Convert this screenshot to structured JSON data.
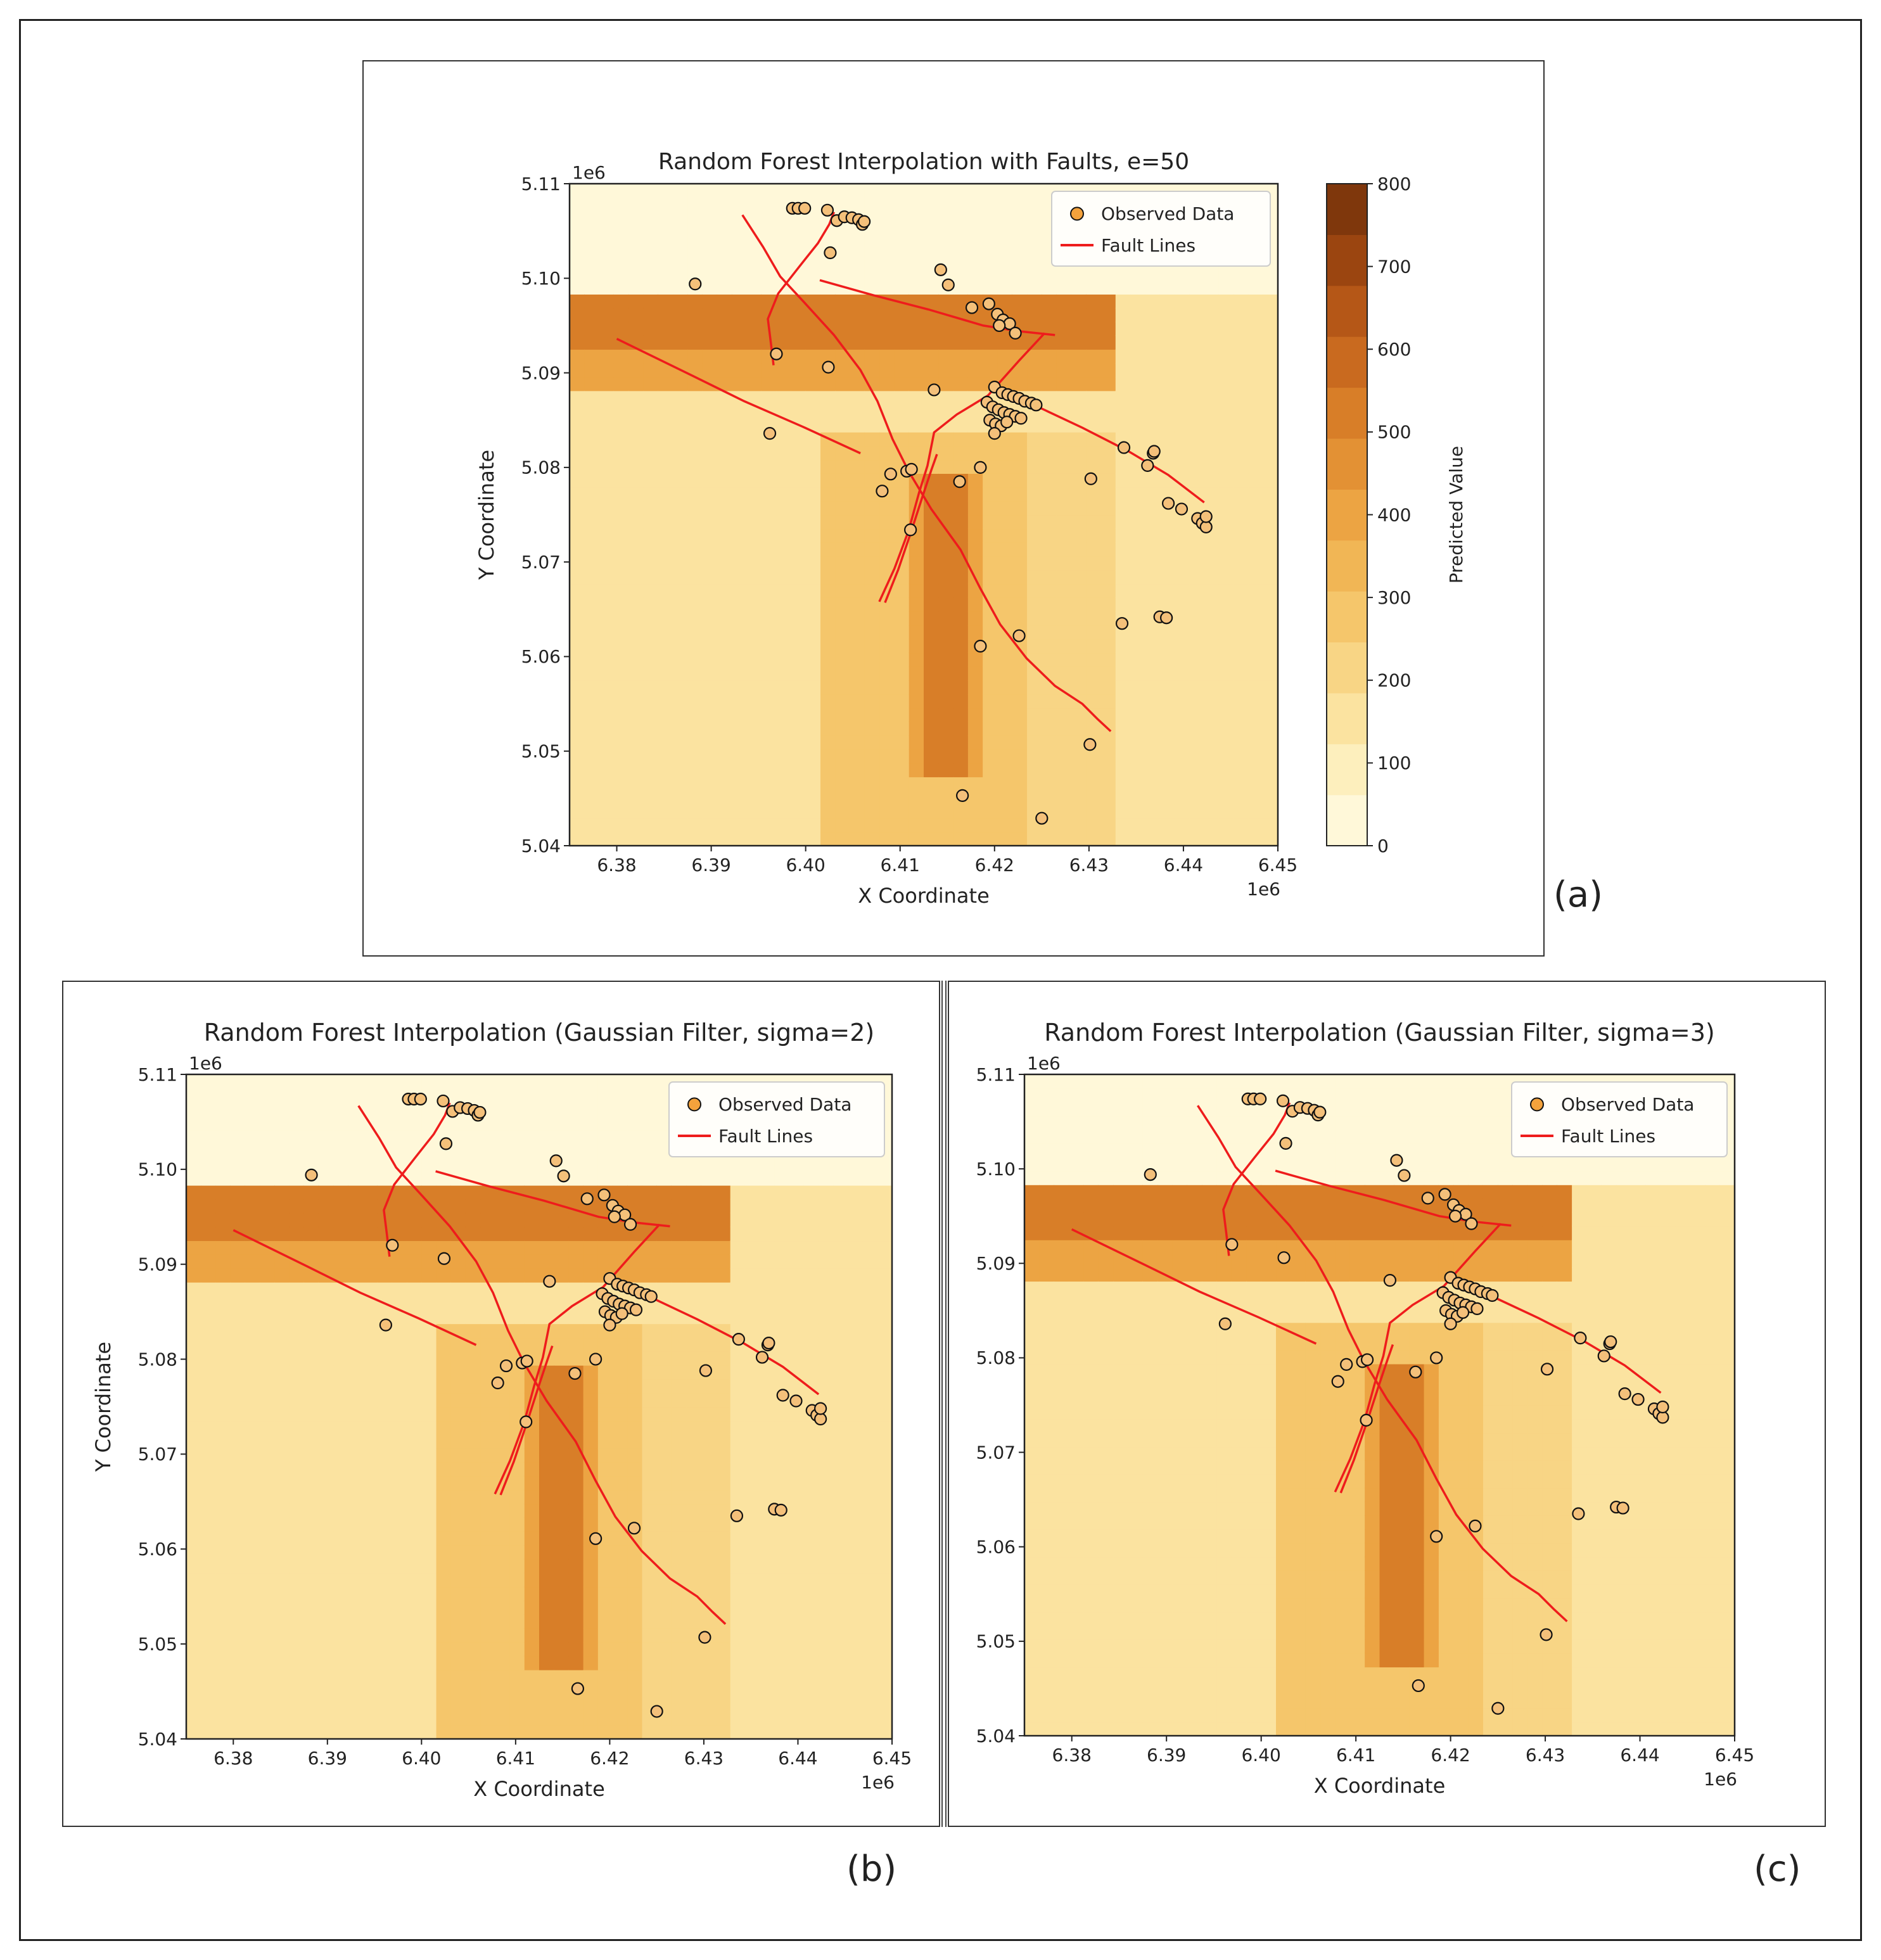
{
  "panels": [
    {
      "id": "a",
      "tag": "(a)",
      "title": "Random Forest Interpolation with Faults, e=50",
      "xlabel": "X Coordinate",
      "ylabel": "Y Coordinate",
      "x_offset_label": "1e6",
      "y_offset_label": "1e6",
      "legend": {
        "position": "top-right",
        "points": "Observed Data",
        "lines": "Fault Lines"
      },
      "colorbar": {
        "label": "Predicted Value",
        "ticks": [
          "0",
          "100",
          "200",
          "300",
          "400",
          "500",
          "600",
          "700",
          "800"
        ]
      }
    },
    {
      "id": "b",
      "tag": "(b)",
      "title": "Random Forest Interpolation (Gaussian Filter, sigma=2)",
      "xlabel": "X Coordinate",
      "ylabel": "Y Coordinate",
      "x_offset_label": "1e6",
      "y_offset_label": "1e6",
      "legend": {
        "position": "top-right",
        "points": "Observed Data",
        "lines": "Fault Lines"
      }
    },
    {
      "id": "c",
      "tag": "(c)",
      "title": "Random Forest Interpolation (Gaussian Filter, sigma=3)",
      "xlabel": "X Coordinate",
      "ylabel": "",
      "x_offset_label": "1e6",
      "y_offset_label": "1e6",
      "legend": {
        "position": "top-right",
        "points": "Observed Data",
        "lines": "Fault Lines"
      }
    }
  ],
  "chart_data": {
    "type": "heatmap",
    "xlim": [
      6375000,
      6450000
    ],
    "ylim": [
      5040000,
      5110000
    ],
    "x_ticks": [
      "6.38",
      "6.39",
      "6.40",
      "6.41",
      "6.42",
      "6.43",
      "6.44",
      "6.45"
    ],
    "y_ticks": [
      "5.04",
      "5.05",
      "5.06",
      "5.07",
      "5.08",
      "5.09",
      "5.10",
      "5.11"
    ],
    "value_range": [
      0,
      800
    ],
    "colormap": [
      "#fff8d9",
      "#fdefbd",
      "#fbe3a0",
      "#f8d585",
      "#f5c66b",
      "#f1b655",
      "#eca443",
      "#e39134",
      "#d87e28",
      "#c96a1f",
      "#b55717",
      "#9b4510",
      "#7f370c"
    ],
    "observed_data": [
      [
        6398600,
        5107400
      ],
      [
        6399200,
        5107400
      ],
      [
        6399900,
        5107400
      ],
      [
        6402300,
        5107200
      ],
      [
        6403300,
        5106100
      ],
      [
        6404100,
        5106500
      ],
      [
        6404900,
        5106400
      ],
      [
        6405600,
        5106200
      ],
      [
        6406000,
        5105700
      ],
      [
        6406200,
        5106000
      ],
      [
        6402600,
        5102700
      ],
      [
        6388300,
        5099400
      ],
      [
        6414300,
        5100900
      ],
      [
        6415100,
        5099300
      ],
      [
        6419400,
        5097300
      ],
      [
        6417600,
        5096900
      ],
      [
        6420300,
        5096200
      ],
      [
        6420900,
        5095600
      ],
      [
        6421600,
        5095200
      ],
      [
        6420500,
        5095000
      ],
      [
        6422200,
        5094200
      ],
      [
        6396900,
        5092000
      ],
      [
        6402400,
        5090600
      ],
      [
        6413600,
        5088200
      ],
      [
        6420000,
        5088500
      ],
      [
        6420800,
        5087900
      ],
      [
        6421400,
        5087700
      ],
      [
        6422000,
        5087500
      ],
      [
        6422600,
        5087300
      ],
      [
        6423200,
        5087000
      ],
      [
        6423900,
        5086800
      ],
      [
        6424400,
        5086600
      ],
      [
        6419200,
        5086900
      ],
      [
        6419800,
        5086400
      ],
      [
        6420400,
        5086100
      ],
      [
        6421000,
        5085800
      ],
      [
        6421600,
        5085600
      ],
      [
        6422200,
        5085400
      ],
      [
        6422800,
        5085200
      ],
      [
        6419500,
        5085000
      ],
      [
        6420100,
        5084600
      ],
      [
        6420700,
        5084400
      ],
      [
        6421300,
        5084800
      ],
      [
        6420000,
        5083600
      ],
      [
        6396200,
        5083600
      ],
      [
        6410700,
        5079600
      ],
      [
        6411200,
        5079800
      ],
      [
        6416300,
        5078500
      ],
      [
        6418500,
        5080000
      ],
      [
        6409000,
        5079300
      ],
      [
        6408100,
        5077500
      ],
      [
        6411100,
        5073400
      ],
      [
        6430200,
        5078800
      ],
      [
        6433700,
        5082100
      ],
      [
        6436200,
        5080200
      ],
      [
        6436800,
        5081500
      ],
      [
        6436900,
        5081700
      ],
      [
        6438400,
        5076200
      ],
      [
        6439800,
        5075600
      ],
      [
        6441500,
        5074600
      ],
      [
        6442000,
        5074100
      ],
      [
        6442400,
        5073700
      ],
      [
        6442400,
        5074800
      ],
      [
        6433500,
        5063500
      ],
      [
        6437500,
        5064200
      ],
      [
        6438200,
        5064100
      ],
      [
        6418500,
        5061100
      ],
      [
        6422600,
        5062200
      ],
      [
        6430100,
        5050700
      ],
      [
        6416600,
        5045300
      ],
      [
        6425000,
        5042900
      ]
    ],
    "fault_lines": [
      [
        [
          6393300,
          5106700
        ],
        [
          6395500,
          5103300
        ],
        [
          6397300,
          5100200
        ],
        [
          6399800,
          5097500
        ],
        [
          6403000,
          5094000
        ],
        [
          6405800,
          5090300
        ],
        [
          6407600,
          5087000
        ],
        [
          6409200,
          5083000
        ],
        [
          6410900,
          5079600
        ],
        [
          6413300,
          5075600
        ],
        [
          6416400,
          5071300
        ],
        [
          6418500,
          5067200
        ],
        [
          6420600,
          5063400
        ],
        [
          6423400,
          5059800
        ],
        [
          6426400,
          5056900
        ],
        [
          6429300,
          5055000
        ],
        [
          6430900,
          5053400
        ],
        [
          6432300,
          5052100
        ]
      ],
      [
        [
          6396600,
          5090800
        ],
        [
          6396300,
          5093300
        ],
        [
          6396000,
          5095700
        ],
        [
          6397100,
          5098400
        ],
        [
          6399300,
          5101200
        ],
        [
          6401300,
          5103700
        ],
        [
          6402500,
          5105700
        ],
        [
          6403000,
          5107000
        ]
      ],
      [
        [
          6380000,
          5093600
        ],
        [
          6387800,
          5089800
        ],
        [
          6393500,
          5087000
        ],
        [
          6399700,
          5084300
        ],
        [
          6405800,
          5081500
        ]
      ],
      [
        [
          6401500,
          5099800
        ],
        [
          6407200,
          5098200
        ],
        [
          6413000,
          5096700
        ],
        [
          6418800,
          5095000
        ],
        [
          6422600,
          5094400
        ],
        [
          6426400,
          5094000
        ]
      ],
      [
        [
          6419500,
          5088800
        ],
        [
          6424400,
          5086500
        ],
        [
          6429300,
          5084200
        ],
        [
          6434200,
          5081700
        ],
        [
          6438400,
          5079200
        ],
        [
          6442200,
          5076300
        ]
      ],
      [
        [
          6407800,
          5065800
        ],
        [
          6409400,
          5069300
        ],
        [
          6410900,
          5073300
        ],
        [
          6412000,
          5077300
        ],
        [
          6412900,
          5080200
        ],
        [
          6413600,
          5083700
        ],
        [
          6416000,
          5085600
        ],
        [
          6419300,
          5087600
        ],
        [
          6422600,
          5091300
        ],
        [
          6425300,
          5094200
        ]
      ],
      [
        [
          6408400,
          5065700
        ],
        [
          6409800,
          5069200
        ],
        [
          6411200,
          5073300
        ],
        [
          6412400,
          5077000
        ],
        [
          6413300,
          5079700
        ],
        [
          6413900,
          5081400
        ]
      ]
    ]
  }
}
